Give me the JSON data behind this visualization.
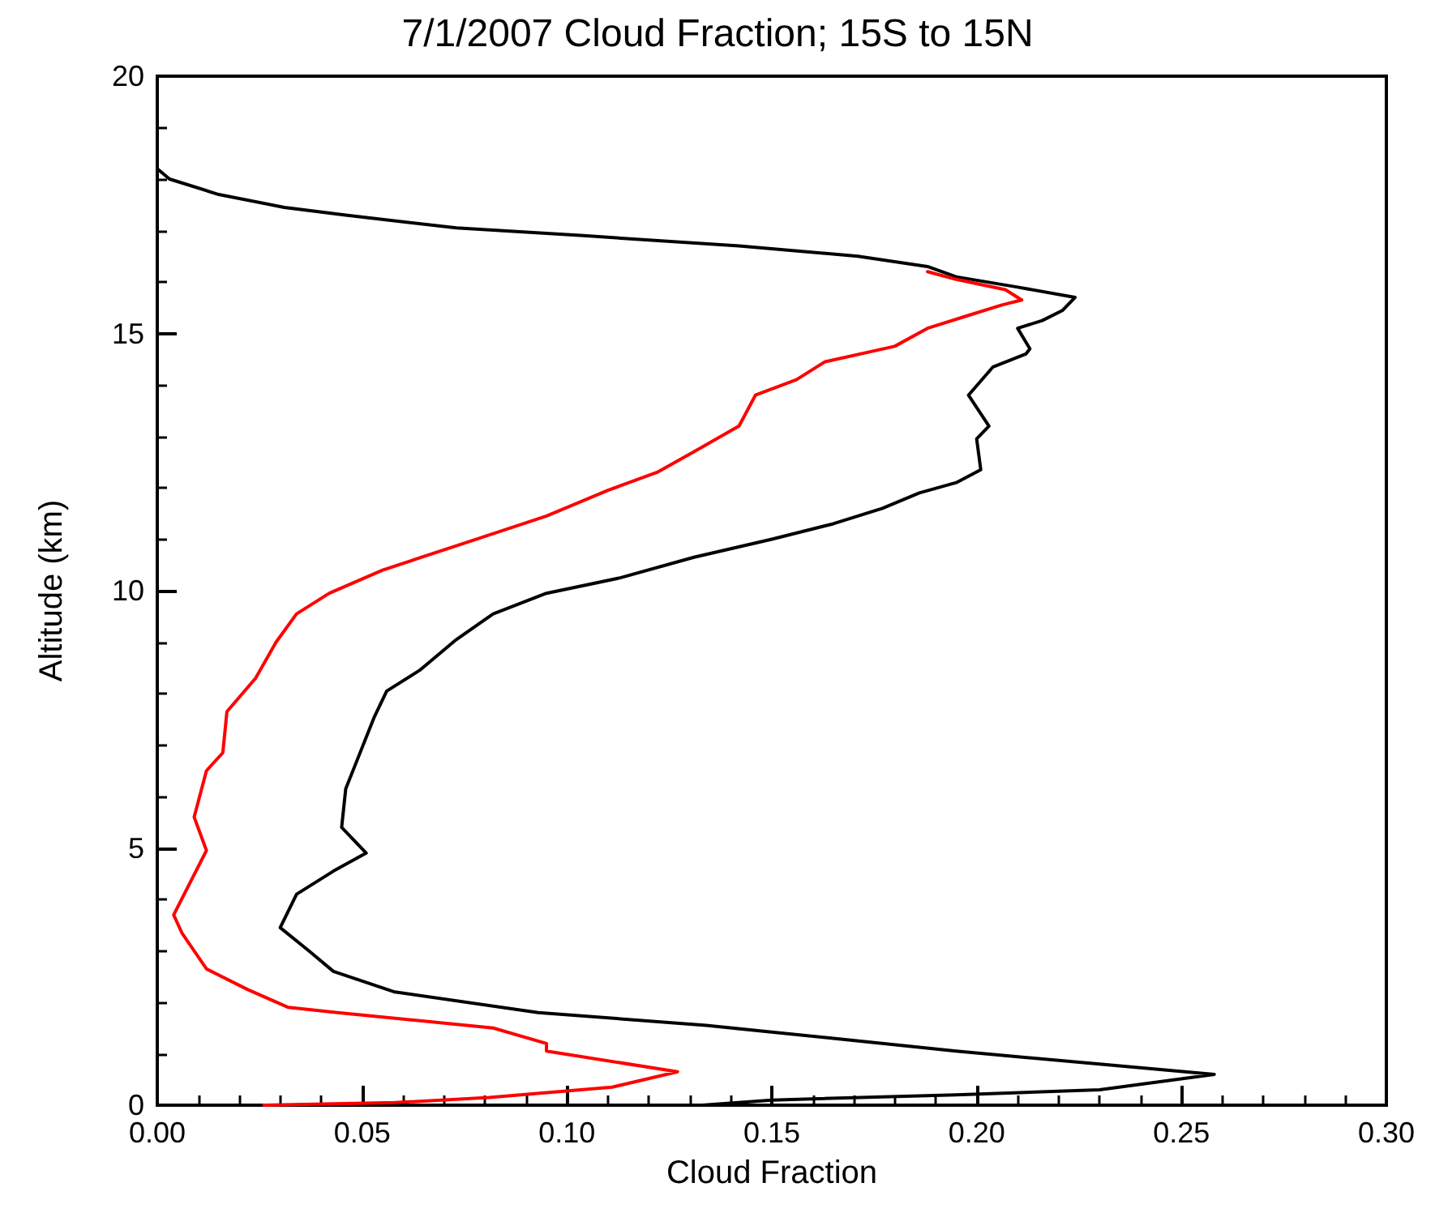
{
  "chart_data": {
    "type": "line",
    "title": "7/1/2007 Cloud Fraction; 15S to 15N",
    "xlabel": "Cloud Fraction",
    "ylabel": "Altitude (km)",
    "xlim": [
      0,
      0.3
    ],
    "xticks": [
      {
        "value": 0,
        "label": "0.00"
      },
      0.05,
      {
        "value": 0.1,
        "label": "0.10"
      },
      0.15,
      {
        "value": 0.2,
        "label": "0.20"
      },
      0.25,
      {
        "value": 0.3,
        "label": "0.30"
      }
    ],
    "ylim": [
      0,
      20
    ],
    "yticks": [
      0,
      5,
      10,
      15,
      20
    ],
    "grid": false,
    "marker": "none",
    "line_style": "solid",
    "series": [
      {
        "color": "#000000",
        "x": [
          0.0,
          0.003,
          0.015,
          0.031,
          0.046,
          0.073,
          0.104,
          0.142,
          0.171,
          0.188,
          0.195,
          0.21,
          0.224,
          0.221,
          0.216,
          0.21,
          0.213,
          0.212,
          0.204,
          0.198,
          0.203,
          0.2,
          0.201,
          0.195,
          0.186,
          0.177,
          0.165,
          0.15,
          0.131,
          0.113,
          0.095,
          0.082,
          0.073,
          0.064,
          0.056,
          0.053,
          0.049,
          0.046,
          0.045,
          0.051,
          0.043,
          0.034,
          0.03,
          0.037,
          0.043,
          0.058,
          0.093,
          0.134,
          0.165,
          0.195,
          0.23,
          0.258,
          0.23,
          0.195,
          0.15,
          0.133
        ],
        "values": [
          18.2,
          18.0,
          17.7,
          17.45,
          17.3,
          17.05,
          16.9,
          16.7,
          16.5,
          16.3,
          16.1,
          15.9,
          15.7,
          15.45,
          15.25,
          15.1,
          14.7,
          14.6,
          14.35,
          13.8,
          13.2,
          12.95,
          12.35,
          12.1,
          11.9,
          11.6,
          11.3,
          11.0,
          10.65,
          10.25,
          9.95,
          9.55,
          9.05,
          8.45,
          8.05,
          7.55,
          6.75,
          6.15,
          5.4,
          4.9,
          4.55,
          4.1,
          3.45,
          3.0,
          2.6,
          2.2,
          1.8,
          1.55,
          1.3,
          1.05,
          0.8,
          0.6,
          0.3,
          0.2,
          0.1,
          0.0
        ]
      },
      {
        "color": "#ff0000",
        "x": [
          0.188,
          0.195,
          0.207,
          0.211,
          0.206,
          0.198,
          0.188,
          0.18,
          0.163,
          0.156,
          0.146,
          0.142,
          0.131,
          0.122,
          0.11,
          0.095,
          0.076,
          0.055,
          0.042,
          0.034,
          0.029,
          0.024,
          0.017,
          0.016,
          0.012,
          0.009,
          0.012,
          0.004,
          0.006,
          0.012,
          0.022,
          0.032,
          0.044,
          0.082,
          0.095,
          0.095,
          0.127,
          0.111,
          0.081,
          0.058,
          0.026
        ],
        "values": [
          16.2,
          16.05,
          15.85,
          15.65,
          15.55,
          15.35,
          15.1,
          14.75,
          14.45,
          14.1,
          13.8,
          13.2,
          12.7,
          12.3,
          11.95,
          11.45,
          10.95,
          10.4,
          9.95,
          9.55,
          9.0,
          8.3,
          7.65,
          6.85,
          6.5,
          5.6,
          4.95,
          3.7,
          3.35,
          2.65,
          2.25,
          1.9,
          1.8,
          1.5,
          1.2,
          1.05,
          0.65,
          0.35,
          0.15,
          0.05,
          0.0
        ]
      }
    ]
  }
}
